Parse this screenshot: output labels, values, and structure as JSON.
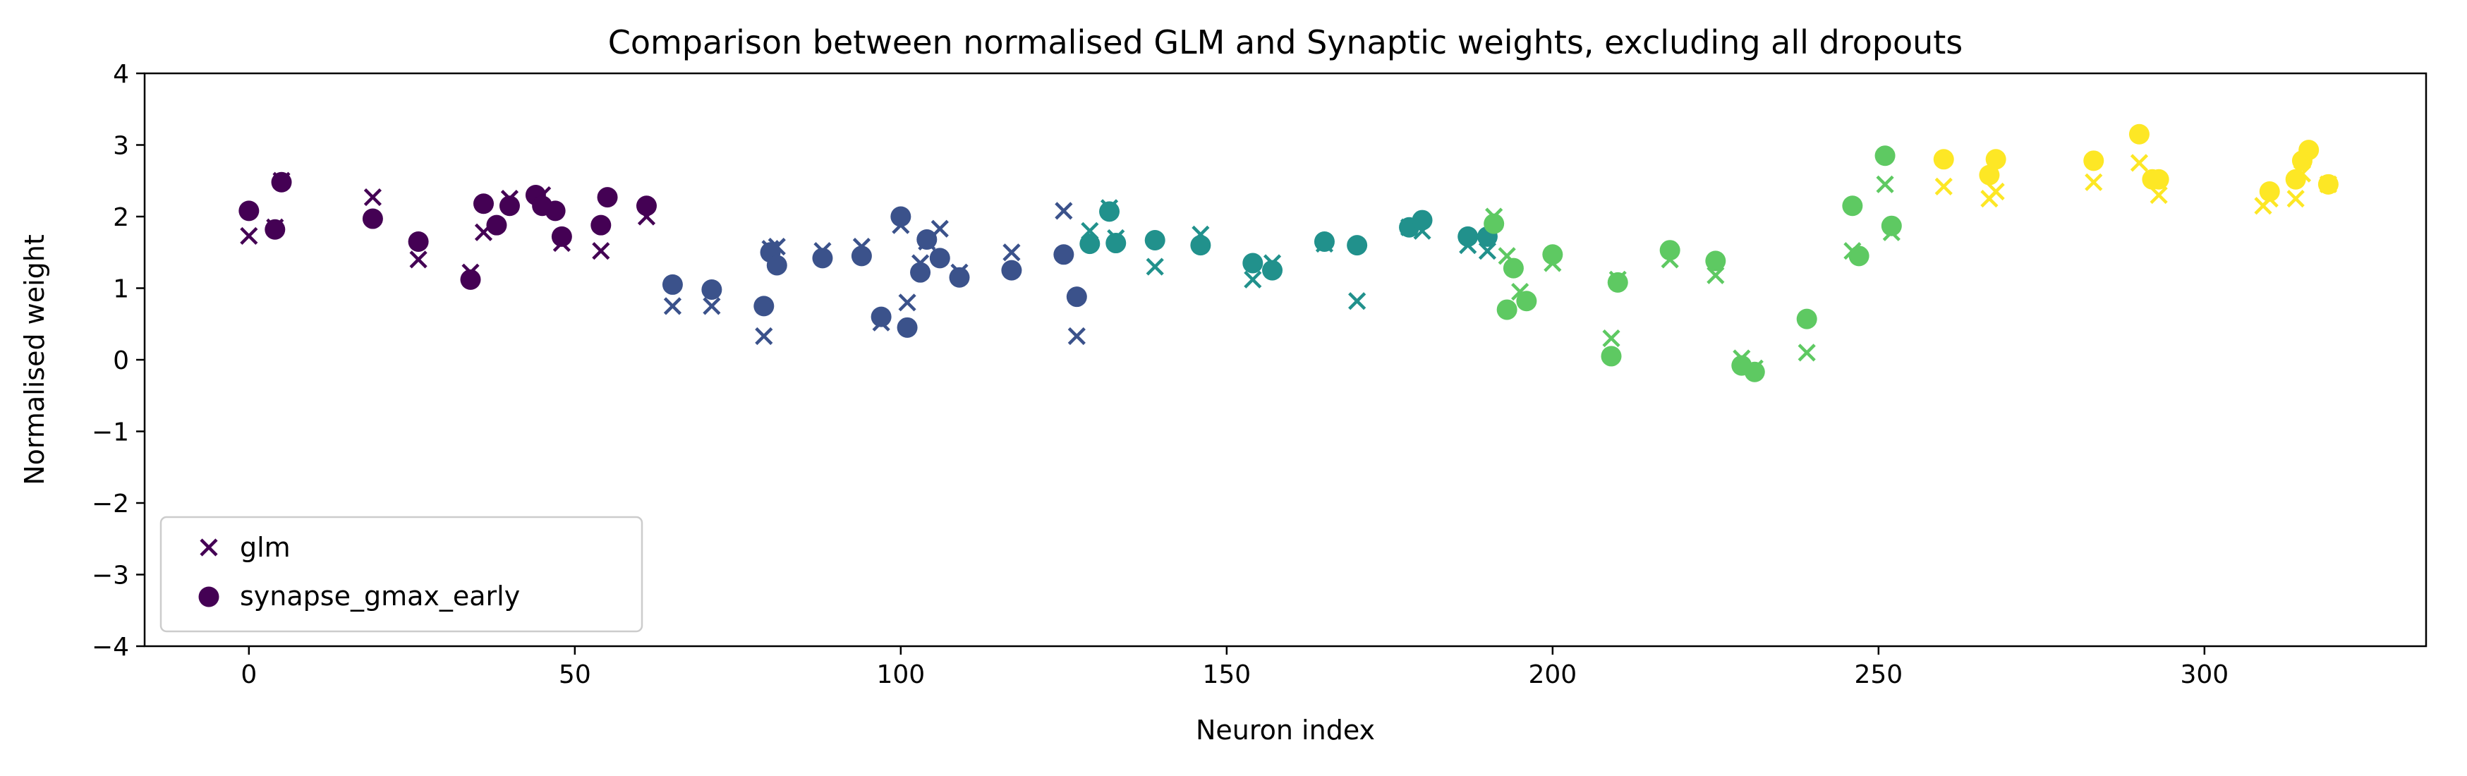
{
  "chart_data": {
    "type": "scatter",
    "title": "Comparison between normalised GLM and Synaptic weights, excluding all dropouts",
    "xlabel": "Neuron index",
    "ylabel": "Normalised weight",
    "xlim": [
      -16,
      334
    ],
    "ylim": [
      -4,
      4
    ],
    "xticks": [
      0,
      50,
      100,
      150,
      200,
      250,
      300
    ],
    "yticks": [
      -4,
      -3,
      -2,
      -1,
      0,
      1,
      2,
      3,
      4
    ],
    "xtick_labels": [
      "0",
      "50",
      "100",
      "150",
      "200",
      "250",
      "300"
    ],
    "ytick_labels": [
      "−4",
      "−3",
      "−2",
      "−1",
      "0",
      "1",
      "2",
      "3",
      "4"
    ],
    "grid": false,
    "legend": "lower-left",
    "colormap": "viridis",
    "colors": [
      "#440154",
      "#3b528b",
      "#21918c",
      "#5ec962",
      "#fde725"
    ],
    "series": [
      {
        "name": "glm",
        "marker": "x",
        "points": [
          [
            0,
            1.73,
            0
          ],
          [
            4,
            1.85,
            0
          ],
          [
            5,
            2.5,
            0
          ],
          [
            19,
            2.27,
            0
          ],
          [
            26,
            1.4,
            0
          ],
          [
            34,
            1.22,
            0
          ],
          [
            36,
            1.78,
            0
          ],
          [
            40,
            2.25,
            0
          ],
          [
            45,
            2.3,
            0
          ],
          [
            48,
            1.63,
            0
          ],
          [
            54,
            1.52,
            0
          ],
          [
            61,
            2.0,
            0
          ],
          [
            65,
            0.75,
            1
          ],
          [
            71,
            0.75,
            1
          ],
          [
            79,
            0.33,
            1
          ],
          [
            80,
            1.55,
            1
          ],
          [
            81,
            1.58,
            1
          ],
          [
            88,
            1.52,
            1
          ],
          [
            94,
            1.58,
            1
          ],
          [
            97,
            0.52,
            1
          ],
          [
            100,
            1.88,
            1
          ],
          [
            101,
            0.8,
            1
          ],
          [
            103,
            1.35,
            1
          ],
          [
            104,
            1.65,
            1
          ],
          [
            106,
            1.83,
            1
          ],
          [
            109,
            1.22,
            1
          ],
          [
            117,
            1.5,
            1
          ],
          [
            125,
            2.08,
            1
          ],
          [
            127,
            0.33,
            1
          ],
          [
            129,
            1.8,
            2
          ],
          [
            132,
            2.12,
            2
          ],
          [
            133,
            1.7,
            2
          ],
          [
            139,
            1.3,
            2
          ],
          [
            146,
            1.75,
            2
          ],
          [
            154,
            1.12,
            2
          ],
          [
            157,
            1.35,
            2
          ],
          [
            165,
            1.62,
            2
          ],
          [
            170,
            0.82,
            2
          ],
          [
            178,
            1.85,
            2
          ],
          [
            180,
            1.8,
            2
          ],
          [
            187,
            1.6,
            2
          ],
          [
            190,
            1.52,
            2
          ],
          [
            191,
            2.0,
            3
          ],
          [
            193,
            1.45,
            3
          ],
          [
            195,
            0.95,
            3
          ],
          [
            200,
            1.35,
            3
          ],
          [
            209,
            0.3,
            3
          ],
          [
            210,
            1.12,
            3
          ],
          [
            218,
            1.4,
            3
          ],
          [
            225,
            1.18,
            3
          ],
          [
            229,
            0.02,
            3
          ],
          [
            231,
            -0.12,
            3
          ],
          [
            239,
            0.1,
            3
          ],
          [
            246,
            1.52,
            3
          ],
          [
            251,
            2.45,
            3
          ],
          [
            252,
            1.78,
            3
          ],
          [
            260,
            2.42,
            4
          ],
          [
            267,
            2.25,
            4
          ],
          [
            268,
            2.35,
            4
          ],
          [
            283,
            2.48,
            4
          ],
          [
            290,
            2.75,
            4
          ],
          [
            293,
            2.3,
            4
          ],
          [
            309,
            2.15,
            4
          ],
          [
            310,
            2.25,
            4
          ],
          [
            314,
            2.25,
            4
          ],
          [
            315,
            2.6,
            4
          ],
          [
            319,
            2.45,
            4
          ]
        ]
      },
      {
        "name": "synapse_gmax_early",
        "marker": "o",
        "points": [
          [
            0,
            2.08,
            0
          ],
          [
            4,
            1.82,
            0
          ],
          [
            5,
            2.48,
            0
          ],
          [
            19,
            1.97,
            0
          ],
          [
            26,
            1.65,
            0
          ],
          [
            34,
            1.12,
            0
          ],
          [
            36,
            2.18,
            0
          ],
          [
            38,
            1.88,
            0
          ],
          [
            40,
            2.15,
            0
          ],
          [
            44,
            2.3,
            0
          ],
          [
            45,
            2.15,
            0
          ],
          [
            47,
            2.08,
            0
          ],
          [
            48,
            1.72,
            0
          ],
          [
            54,
            1.88,
            0
          ],
          [
            55,
            2.27,
            0
          ],
          [
            61,
            2.15,
            0
          ],
          [
            65,
            1.05,
            1
          ],
          [
            71,
            0.98,
            1
          ],
          [
            79,
            0.75,
            1
          ],
          [
            80,
            1.5,
            1
          ],
          [
            81,
            1.32,
            1
          ],
          [
            88,
            1.42,
            1
          ],
          [
            94,
            1.45,
            1
          ],
          [
            97,
            0.6,
            1
          ],
          [
            100,
            2.0,
            1
          ],
          [
            101,
            0.45,
            1
          ],
          [
            103,
            1.22,
            1
          ],
          [
            104,
            1.68,
            1
          ],
          [
            106,
            1.42,
            1
          ],
          [
            109,
            1.15,
            1
          ],
          [
            117,
            1.25,
            1
          ],
          [
            125,
            1.47,
            1
          ],
          [
            127,
            0.88,
            1
          ],
          [
            129,
            1.62,
            2
          ],
          [
            132,
            2.07,
            2
          ],
          [
            133,
            1.63,
            2
          ],
          [
            139,
            1.67,
            2
          ],
          [
            146,
            1.6,
            2
          ],
          [
            154,
            1.35,
            2
          ],
          [
            157,
            1.25,
            2
          ],
          [
            165,
            1.65,
            2
          ],
          [
            170,
            1.6,
            2
          ],
          [
            178,
            1.85,
            2
          ],
          [
            180,
            1.95,
            2
          ],
          [
            187,
            1.72,
            2
          ],
          [
            190,
            1.72,
            2
          ],
          [
            191,
            1.9,
            3
          ],
          [
            193,
            0.7,
            3
          ],
          [
            194,
            1.28,
            3
          ],
          [
            196,
            0.82,
            3
          ],
          [
            200,
            1.47,
            3
          ],
          [
            209,
            0.05,
            3
          ],
          [
            210,
            1.08,
            3
          ],
          [
            218,
            1.53,
            3
          ],
          [
            225,
            1.38,
            3
          ],
          [
            229,
            -0.08,
            3
          ],
          [
            231,
            -0.17,
            3
          ],
          [
            239,
            0.57,
            3
          ],
          [
            246,
            2.15,
            3
          ],
          [
            247,
            1.45,
            3
          ],
          [
            251,
            2.85,
            3
          ],
          [
            252,
            1.87,
            3
          ],
          [
            260,
            2.8,
            4
          ],
          [
            267,
            2.58,
            4
          ],
          [
            268,
            2.8,
            4
          ],
          [
            283,
            2.78,
            4
          ],
          [
            290,
            3.15,
            4
          ],
          [
            292,
            2.52,
            4
          ],
          [
            293,
            2.52,
            4
          ],
          [
            310,
            2.35,
            4
          ],
          [
            314,
            2.52,
            4
          ],
          [
            315,
            2.78,
            4
          ],
          [
            316,
            2.93,
            4
          ],
          [
            319,
            2.45,
            4
          ]
        ]
      }
    ]
  }
}
